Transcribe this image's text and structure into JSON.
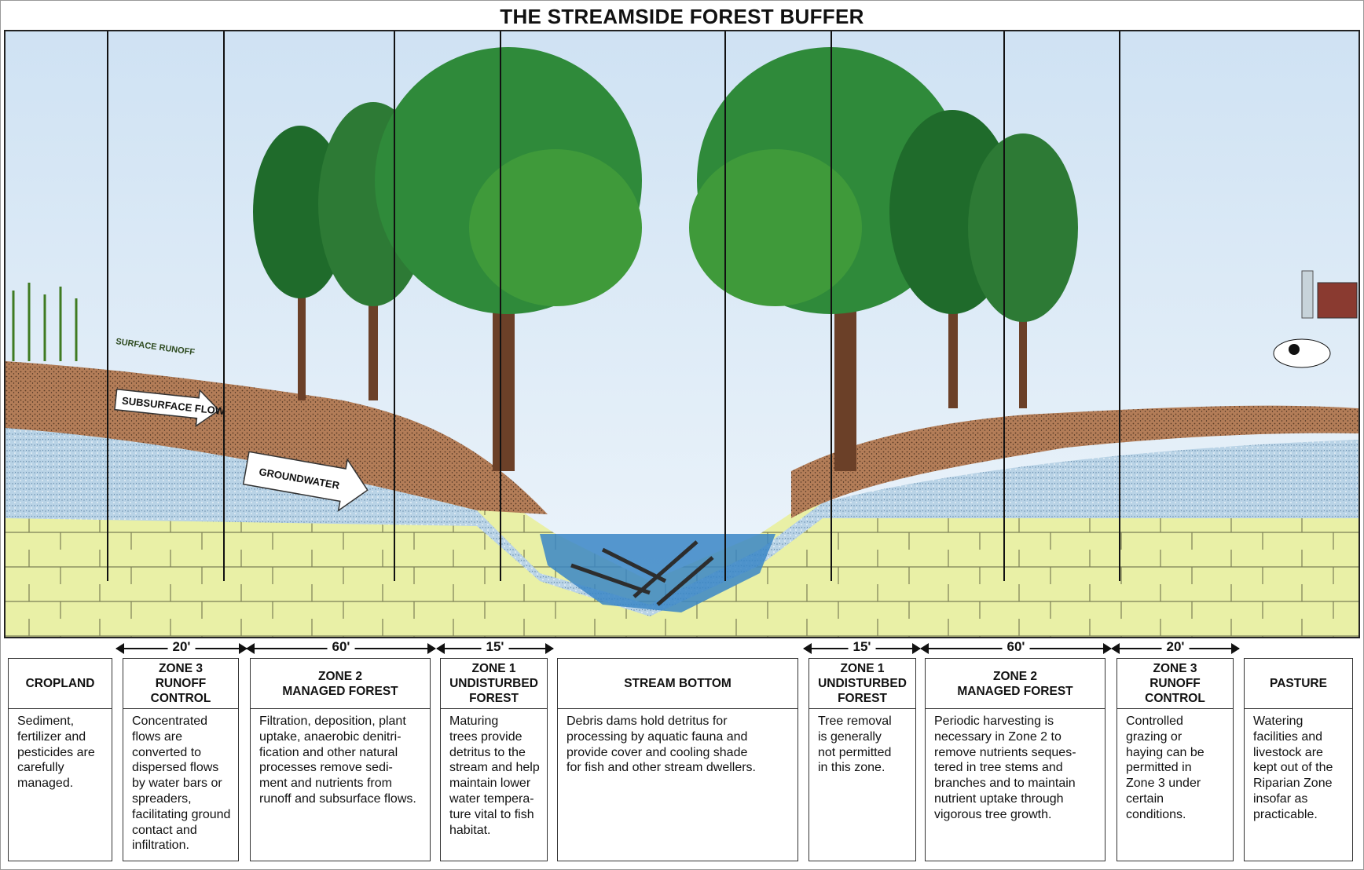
{
  "title": "THE STREAMSIDE FOREST BUFFER",
  "illustration": {
    "labels": {
      "surface_runoff": "SURFACE RUNOFF",
      "subsurface_flow": "SUBSURFACE FLOW",
      "groundwater": "GROUNDWATER"
    },
    "colors": {
      "sky": "#dbeaf6",
      "soil": "#b07a56",
      "gravel": "#aac8e0",
      "bedrock": "#e8ef9c",
      "water": "#3a86c6",
      "tree_dark": "#1f6b2b",
      "tree_light": "#3f9a3a",
      "trunk": "#6b4028"
    }
  },
  "dimensions": {
    "left_zone3": "20'",
    "left_zone2": "60'",
    "left_zone1": "15'",
    "right_zone1": "15'",
    "right_zone2": "60'",
    "right_zone3": "20'"
  },
  "zones": [
    {
      "heading": "CROPLAND",
      "text": "Sediment,\nfertilizer and\npesticides are\ncarefully\nmanaged."
    },
    {
      "heading": "ZONE 3\nRUNOFF CONTROL",
      "text": "Concentrated\nflows are\nconverted to\ndispersed flows\nby water bars or\nspreaders,\nfacilitating ground\ncontact and\ninfiltration."
    },
    {
      "heading": "ZONE 2\nMANAGED FOREST",
      "text": "Filtration, deposition, plant\nuptake, anaerobic denitri-\nfication and other natural\nprocesses remove sedi-\nment and nutrients from\nrunoff and subsurface flows."
    },
    {
      "heading": "ZONE 1\nUNDISTURBED\nFOREST",
      "text": "Maturing\ntrees provide\ndetritus to the\nstream and help\nmaintain lower\nwater tempera-\nture vital to fish\nhabitat."
    },
    {
      "heading": "STREAM BOTTOM",
      "text": "Debris dams hold detritus for\nprocessing by aquatic fauna and\nprovide cover and cooling shade\nfor fish and other stream dwellers."
    },
    {
      "heading": "ZONE 1\nUNDISTURBED\nFOREST",
      "text": "Tree removal\nis generally\nnot permitted\nin this zone."
    },
    {
      "heading": "ZONE 2\nMANAGED FOREST",
      "text": "Periodic harvesting is\nnecessary in Zone 2 to\nremove nutrients seques-\ntered in tree stems and\nbranches and to maintain\nnutrient uptake through\nvigorous tree growth."
    },
    {
      "heading": "ZONE 3\nRUNOFF CONTROL",
      "text": "Controlled\ngrazing or\nhaying can be\npermitted in\nZone 3 under\ncertain\nconditions."
    },
    {
      "heading": "PASTURE",
      "text": "Watering\nfacilities and\nlivestock are\nkept out of the\nRiparian Zone\ninsofar as\npracticable."
    }
  ]
}
